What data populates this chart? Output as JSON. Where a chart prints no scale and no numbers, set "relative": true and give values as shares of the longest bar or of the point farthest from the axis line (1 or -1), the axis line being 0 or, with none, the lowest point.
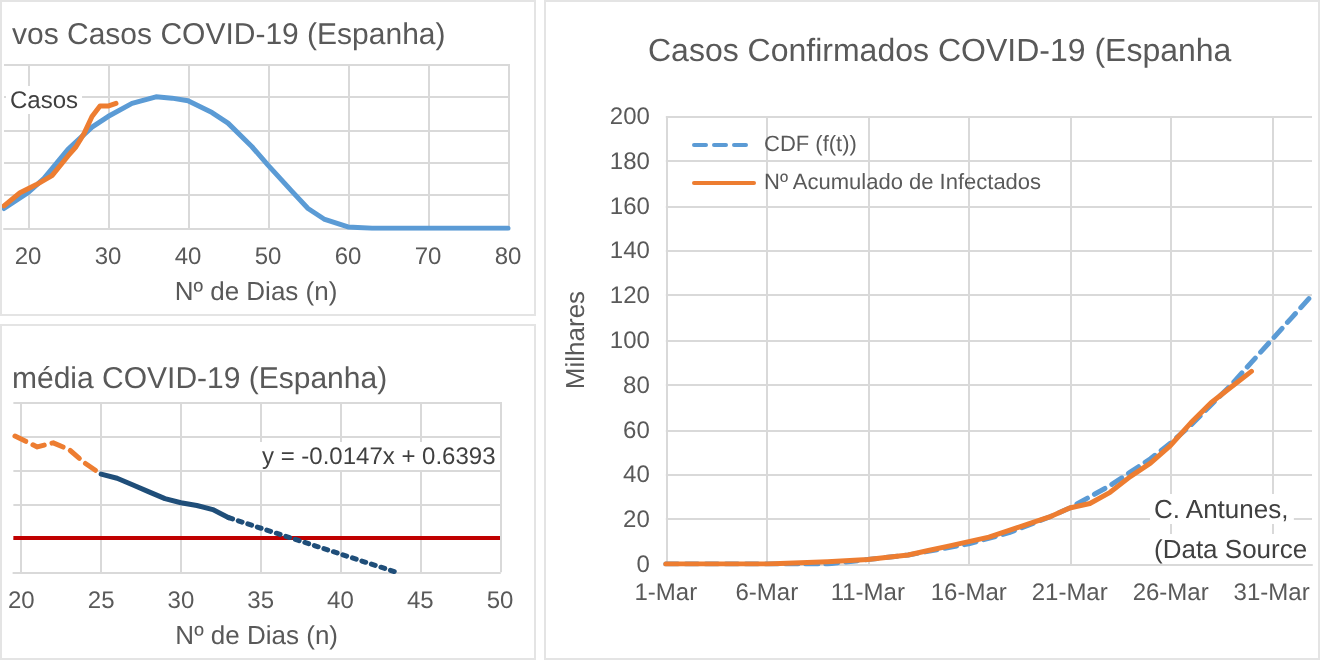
{
  "chart_data": [
    {
      "type": "line",
      "title": "vos Casos COVID-19 (Espanha)",
      "xlabel": "Nº de Dias (n)",
      "relative": true,
      "grid": true,
      "marker": "none",
      "annotations": [
        "Casos"
      ],
      "xlim": [
        17,
        80
      ],
      "xticks": [
        20,
        30,
        40,
        50,
        60,
        70,
        80
      ],
      "series": [
        {
          "color": "#5b9bd5",
          "line_style": "solid",
          "x": [
            17,
            20,
            22,
            25,
            28,
            30,
            33,
            36,
            38,
            40,
            43,
            45,
            48,
            50,
            53,
            55,
            57,
            60,
            63,
            70,
            80
          ],
          "values": [
            0.15,
            0.27,
            0.38,
            0.6,
            0.77,
            0.85,
            0.95,
            1,
            0.99,
            0.97,
            0.88,
            0.8,
            0.62,
            0.48,
            0.28,
            0.15,
            0.07,
            0.01,
            0,
            0,
            0
          ]
        },
        {
          "color": "#ed7d31",
          "line_style": "solid",
          "x": [
            17,
            19,
            21,
            23,
            25,
            26,
            27,
            28,
            29,
            30,
            31
          ],
          "values": [
            0.17,
            0.27,
            0.33,
            0.4,
            0.55,
            0.62,
            0.72,
            0.85,
            0.93,
            0.93,
            0.95
          ]
        }
      ]
    },
    {
      "type": "line",
      "title": "média COVID-19 (Espanha)",
      "xlabel": "Nº de Dias (n)",
      "relative": true,
      "grid": true,
      "marker": "none",
      "annotations": [
        "y = -0.0147x + 0.6393"
      ],
      "xlim": [
        19.5,
        50
      ],
      "xticks": [
        20,
        25,
        30,
        35,
        40,
        45,
        50
      ],
      "ref_lines": [
        {
          "axis": "y",
          "value": 0.26,
          "color": "#c00000"
        }
      ],
      "series": [
        {
          "color": "#ed7d31",
          "line_style": "dashed",
          "x": [
            19.6,
            21,
            22,
            23,
            24,
            25
          ],
          "values": [
            1,
            0.92,
            0.95,
            0.9,
            0.8,
            0.72
          ]
        },
        {
          "color": "#1f4e79",
          "line_style": "solid",
          "x": [
            25,
            26,
            27,
            28,
            29,
            30,
            31,
            32,
            33
          ],
          "values": [
            0.72,
            0.69,
            0.64,
            0.59,
            0.54,
            0.51,
            0.49,
            0.46,
            0.4
          ]
        },
        {
          "type": "line",
          "color": "#1f4e79",
          "line_style": "dotted",
          "x": [
            33,
            43.5
          ],
          "values": [
            0.4,
            0
          ]
        }
      ]
    },
    {
      "type": "line",
      "title": "Casos Confirmados COVID-19 (Espanha",
      "ylabel": "Milhares",
      "grid": true,
      "marker": "none",
      "legend": "top left",
      "annotations": [
        "C. Antunes,",
        "(Data Source"
      ],
      "xlim": [
        "--03-01",
        "--04-02"
      ],
      "xticks": [
        {
          "value": "--03-01",
          "label": "1-Mar"
        },
        {
          "value": "--03-06",
          "label": "6-Mar"
        },
        {
          "value": "--03-11",
          "label": "11-Mar"
        },
        {
          "value": "--03-16",
          "label": "16-Mar"
        },
        {
          "value": "--03-21",
          "label": "21-Mar"
        },
        {
          "value": "--03-26",
          "label": "26-Mar"
        },
        {
          "value": "--03-31",
          "label": "31-Mar"
        }
      ],
      "ylim": [
        0,
        200
      ],
      "yticks": [
        0,
        20,
        40,
        60,
        80,
        100,
        120,
        140,
        160,
        180,
        200
      ],
      "series": [
        {
          "name": "CDF (f(t))",
          "color": "#5b9bd5",
          "line_style": "dashed",
          "x": [
            "--03-01",
            "--03-06",
            "--03-09",
            "--03-11",
            "--03-13",
            "--03-16",
            "--03-18",
            "--03-20",
            "--03-21",
            "--03-22",
            "--03-23",
            "--03-24",
            "--03-25",
            "--03-26",
            "--03-27",
            "--03-28",
            "--03-29",
            "--03-30",
            "--03-31",
            "--04-01",
            "--04-02"
          ],
          "values": [
            0,
            0,
            0,
            2,
            4,
            9,
            14,
            21,
            25,
            30,
            35,
            41,
            47,
            54,
            62,
            71,
            80,
            90,
            100,
            110,
            120
          ]
        },
        {
          "name": "Nº Acumulado de Infectados",
          "color": "#ed7d31",
          "line_style": "solid",
          "x": [
            "--03-01",
            "--03-06",
            "--03-09",
            "--03-11",
            "--03-13",
            "--03-14",
            "--03-15",
            "--03-16",
            "--03-17",
            "--03-18",
            "--03-19",
            "--03-20",
            "--03-21",
            "--03-22",
            "--03-23",
            "--03-24",
            "--03-25",
            "--03-26",
            "--03-27",
            "--03-28",
            "--03-29",
            "--03-30"
          ],
          "values": [
            0,
            0,
            1,
            2,
            4,
            6,
            8,
            10,
            12,
            15,
            18,
            21,
            25,
            27,
            32,
            39,
            45,
            53,
            63,
            72,
            79,
            86
          ]
        }
      ]
    }
  ]
}
